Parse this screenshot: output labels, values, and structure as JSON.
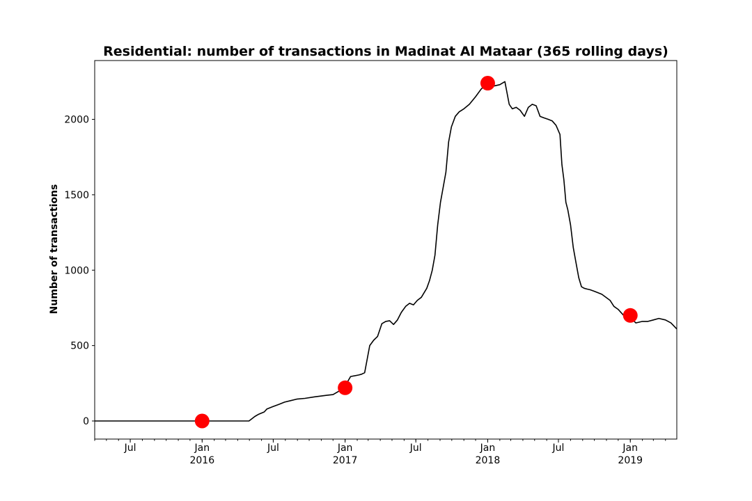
{
  "chart_data": {
    "type": "line",
    "title": "Residential: number of transactions in Madinat Al Mataar (365 rolling days)",
    "xlabel": "",
    "ylabel": "Number of transactions",
    "x_range": [
      "2015-04-01",
      "2019-04-30"
    ],
    "ylim": [
      -120,
      2390
    ],
    "grid": false,
    "line_color": "#000000",
    "marker_color": "#ff0000",
    "y_ticks": [
      {
        "value": 0,
        "label": "0"
      },
      {
        "value": 500,
        "label": "500"
      },
      {
        "value": 1000,
        "label": "1000"
      },
      {
        "value": 1500,
        "label": "1500"
      },
      {
        "value": 2000,
        "label": "2000"
      }
    ],
    "x_ticks": [
      {
        "date": "2015-07-01",
        "label": "Jul",
        "sublabel": ""
      },
      {
        "date": "2016-01-01",
        "label": "Jan",
        "sublabel": "2016"
      },
      {
        "date": "2016-07-01",
        "label": "Jul",
        "sublabel": ""
      },
      {
        "date": "2017-01-01",
        "label": "Jan",
        "sublabel": "2017"
      },
      {
        "date": "2017-07-01",
        "label": "Jul",
        "sublabel": ""
      },
      {
        "date": "2018-01-01",
        "label": "Jan",
        "sublabel": "2018"
      },
      {
        "date": "2018-07-01",
        "label": "Jul",
        "sublabel": ""
      },
      {
        "date": "2019-01-01",
        "label": "Jan",
        "sublabel": "2019"
      }
    ],
    "series": [
      {
        "x": [
          "2015-04-01",
          "2016-04-30",
          "2016-05-15",
          "2016-05-25",
          "2016-06-08",
          "2016-06-15",
          "2016-06-30",
          "2016-07-15",
          "2016-07-30",
          "2016-08-15",
          "2016-08-30",
          "2016-09-20",
          "2016-10-15",
          "2016-11-15",
          "2016-12-01",
          "2016-12-31",
          "2017-01-05",
          "2017-01-15",
          "2017-02-05",
          "2017-02-12",
          "2017-02-20",
          "2017-03-05",
          "2017-03-15",
          "2017-03-25",
          "2017-04-05",
          "2017-04-15",
          "2017-04-25",
          "2017-05-05",
          "2017-05-15",
          "2017-05-25",
          "2017-06-05",
          "2017-06-15",
          "2017-06-25",
          "2017-07-05",
          "2017-07-15",
          "2017-07-22",
          "2017-07-29",
          "2017-08-05",
          "2017-08-12",
          "2017-08-19",
          "2017-08-26",
          "2017-09-02",
          "2017-09-09",
          "2017-09-16",
          "2017-09-23",
          "2017-09-30",
          "2017-10-10",
          "2017-10-20",
          "2017-11-01",
          "2017-11-15",
          "2017-12-01",
          "2017-12-15",
          "2017-12-31",
          "2018-01-15",
          "2018-02-01",
          "2018-02-14",
          "2018-02-25",
          "2018-03-05",
          "2018-03-15",
          "2018-03-25",
          "2018-04-05",
          "2018-04-15",
          "2018-04-25",
          "2018-05-05",
          "2018-05-15",
          "2018-05-25",
          "2018-06-05",
          "2018-06-15",
          "2018-06-25",
          "2018-07-05",
          "2018-07-10",
          "2018-07-15",
          "2018-07-20",
          "2018-07-25",
          "2018-08-01",
          "2018-08-08",
          "2018-08-15",
          "2018-08-22",
          "2018-08-29",
          "2018-09-05",
          "2018-09-12",
          "2018-09-20",
          "2018-10-01",
          "2018-10-20",
          "2018-11-10",
          "2018-11-20",
          "2018-12-01",
          "2018-12-15",
          "2018-12-31",
          "2019-01-15",
          "2019-02-01",
          "2019-02-15",
          "2019-03-01",
          "2019-03-15",
          "2019-04-01",
          "2019-04-15",
          "2019-04-30"
        ],
        "y": [
          0,
          0,
          30,
          45,
          60,
          80,
          95,
          110,
          125,
          135,
          145,
          150,
          160,
          170,
          175,
          220,
          250,
          295,
          305,
          310,
          320,
          500,
          535,
          560,
          645,
          660,
          665,
          640,
          670,
          720,
          760,
          780,
          770,
          800,
          820,
          850,
          880,
          930,
          1000,
          1100,
          1300,
          1450,
          1550,
          1650,
          1850,
          1950,
          2020,
          2050,
          2070,
          2100,
          2150,
          2200,
          2240,
          2220,
          2230,
          2250,
          2100,
          2070,
          2080,
          2060,
          2020,
          2080,
          2100,
          2090,
          2020,
          2010,
          2000,
          1990,
          1960,
          1900,
          1700,
          1600,
          1450,
          1400,
          1300,
          1150,
          1050,
          950,
          890,
          880,
          875,
          870,
          860,
          840,
          800,
          760,
          740,
          700,
          690,
          650,
          660,
          660,
          670,
          680,
          670,
          650,
          610
        ]
      }
    ],
    "highlighted_points": [
      {
        "x": "2016-01-01",
        "y": 0
      },
      {
        "x": "2017-01-01",
        "y": 220
      },
      {
        "x": "2018-01-01",
        "y": 2240
      },
      {
        "x": "2019-01-01",
        "y": 700
      }
    ]
  }
}
